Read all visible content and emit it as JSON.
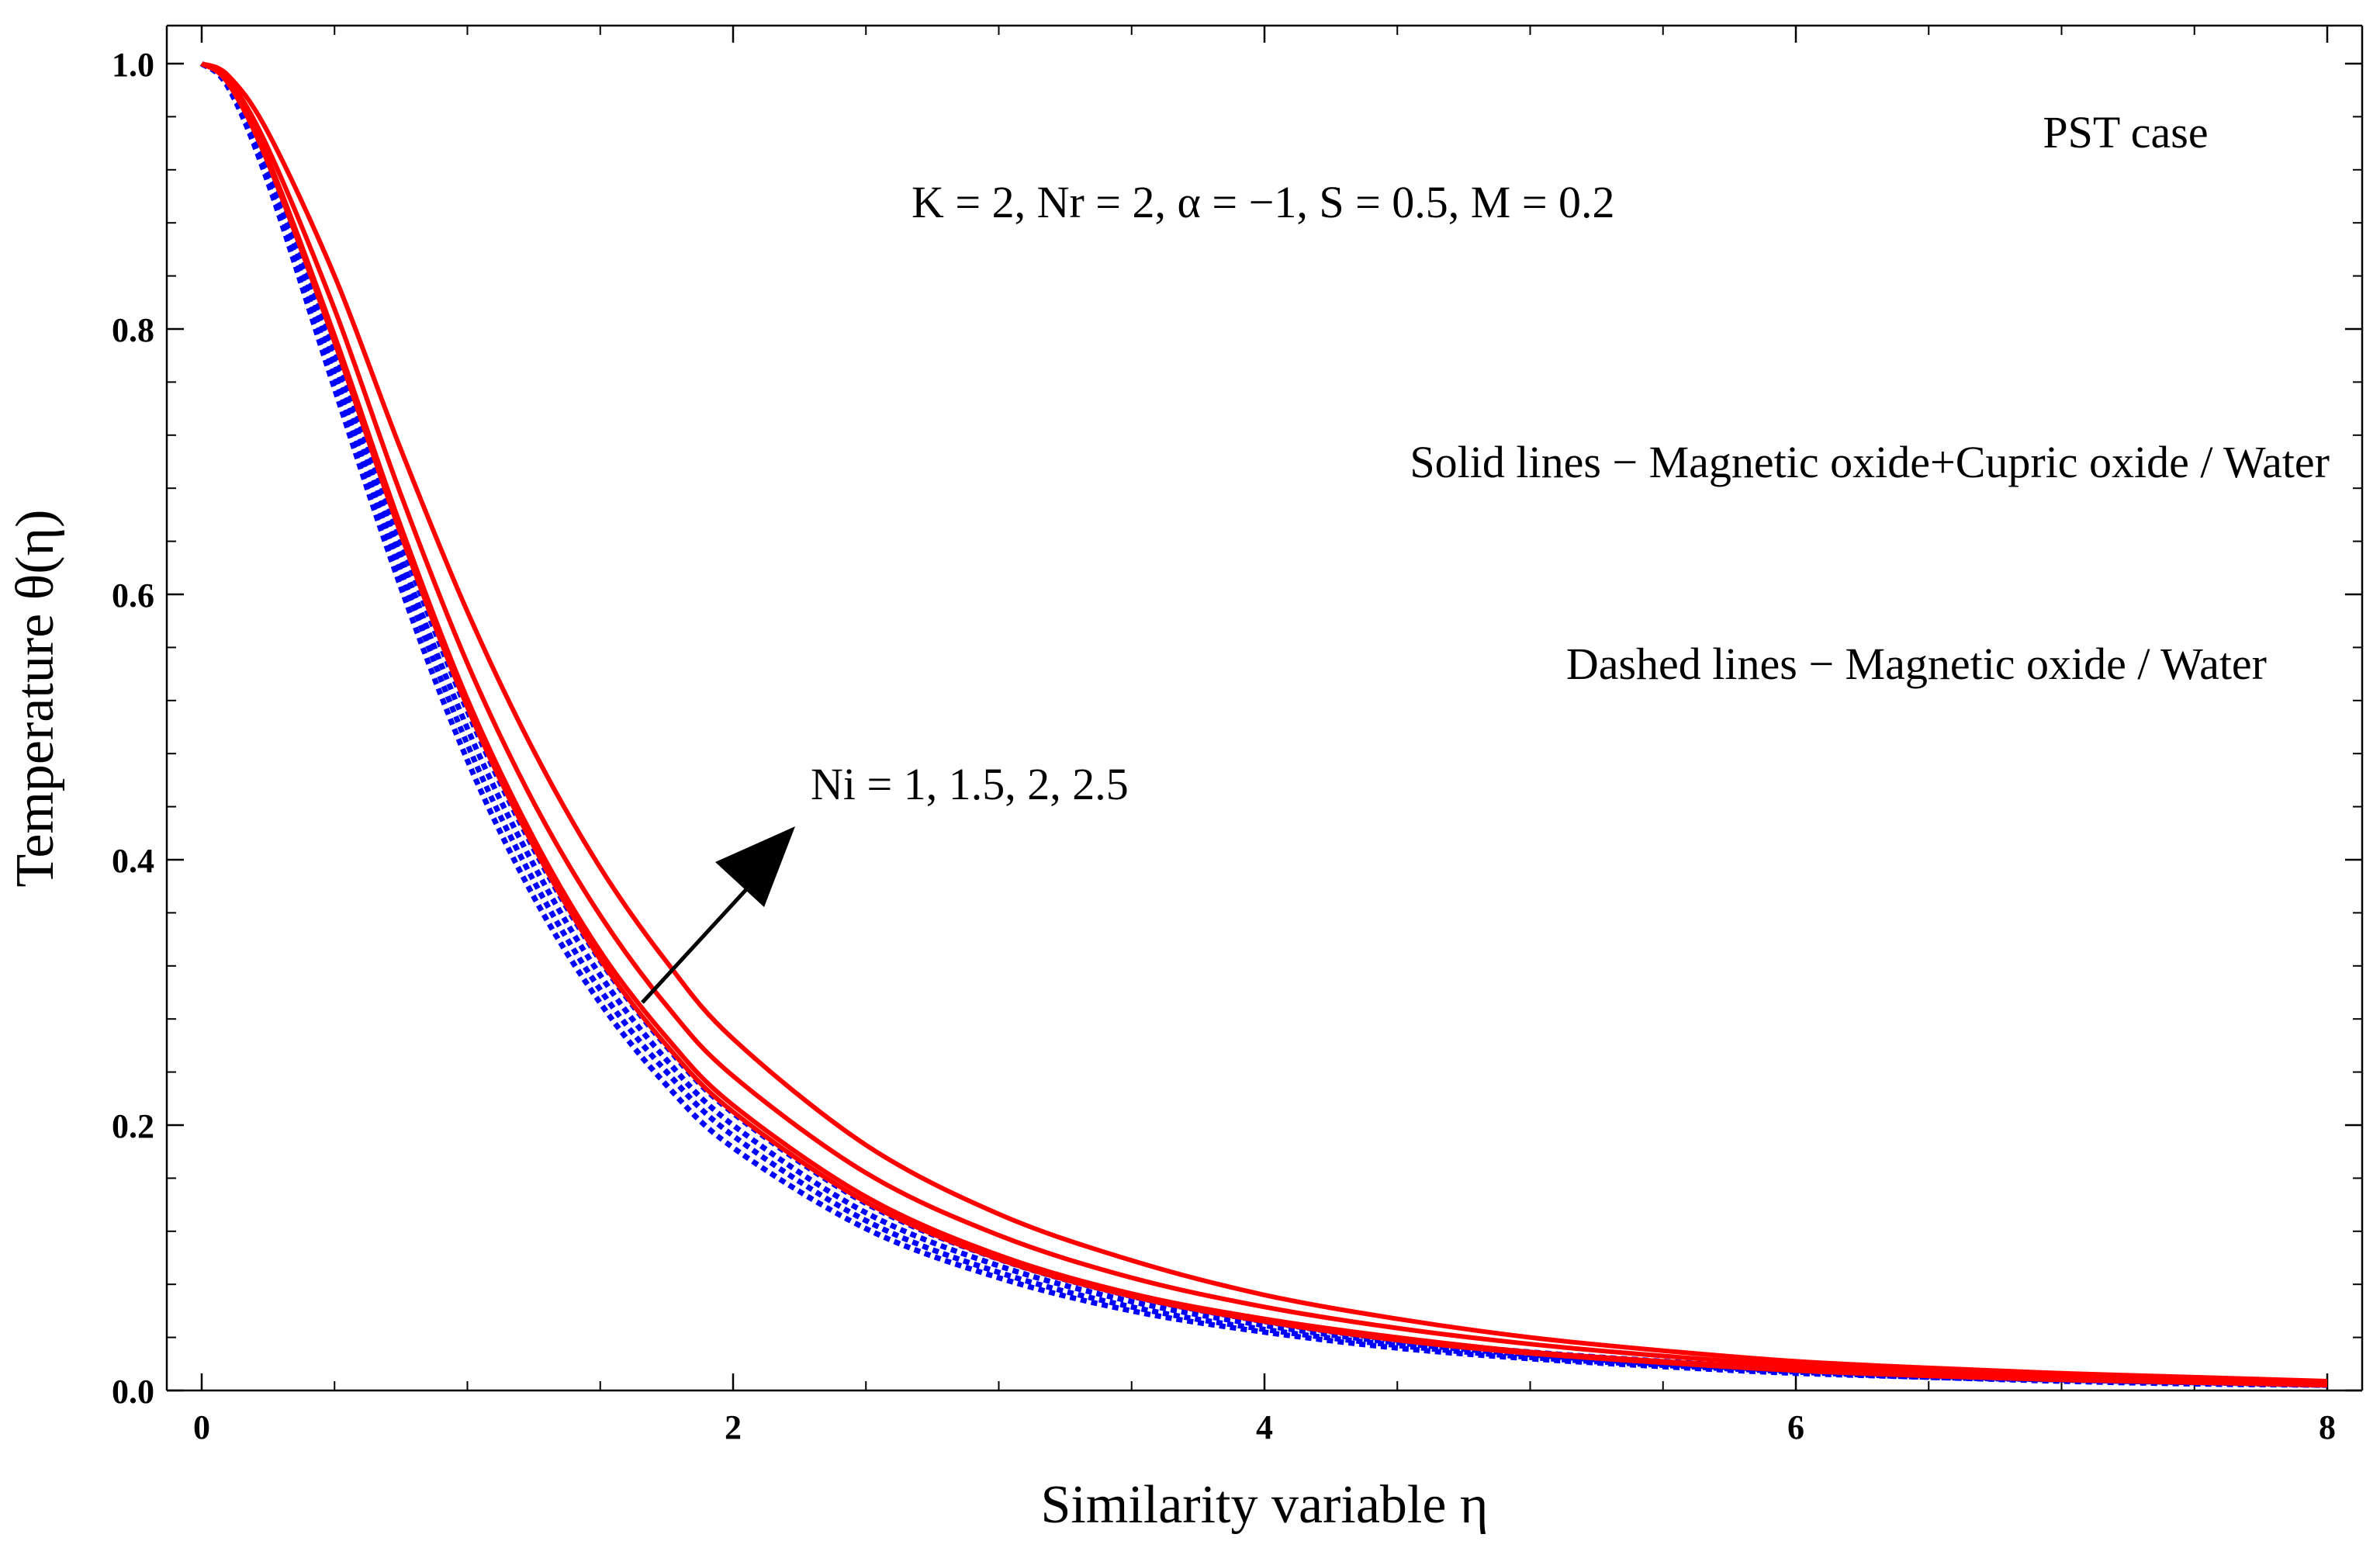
{
  "chart_data": {
    "type": "line",
    "title": "",
    "xlabel": "Similarity variable η",
    "ylabel": "Temperature θ(η)",
    "xlim": [
      0,
      8
    ],
    "ylim": [
      0,
      1
    ],
    "x_ticks": [
      0,
      2,
      4,
      6,
      8
    ],
    "x_tick_labels": [
      "0",
      "2",
      "4",
      "6",
      "8"
    ],
    "y_ticks": [
      0,
      0.2,
      0.4,
      0.6,
      0.8,
      1.0
    ],
    "y_tick_labels": [
      "0.0",
      "0.2",
      "0.4",
      "0.6",
      "0.8",
      "1.0"
    ],
    "grid": false,
    "x": [
      0,
      0.1,
      0.25,
      0.5,
      0.75,
      1,
      1.25,
      1.5,
      1.75,
      2,
      2.5,
      3,
      3.5,
      4,
      4.5,
      5,
      5.5,
      6,
      6.5,
      7,
      7.5,
      8
    ],
    "series": [
      {
        "name": "Hybrid Ni=1",
        "group": "Magnetic oxide+Cupric oxide / Water",
        "style": "solid",
        "color": "#ff0000",
        "values": [
          1.0,
          0.985,
          0.925,
          0.79,
          0.645,
          0.515,
          0.41,
          0.325,
          0.26,
          0.21,
          0.142,
          0.099,
          0.071,
          0.052,
          0.038,
          0.028,
          0.021,
          0.015,
          0.011,
          0.008,
          0.006,
          0.004
        ]
      },
      {
        "name": "Hybrid Ni=1.5",
        "group": "Magnetic oxide+Cupric oxide / Water",
        "style": "solid",
        "color": "#ff0000",
        "values": [
          1.0,
          0.986,
          0.928,
          0.795,
          0.651,
          0.521,
          0.416,
          0.331,
          0.266,
          0.215,
          0.146,
          0.102,
          0.073,
          0.054,
          0.04,
          0.029,
          0.022,
          0.016,
          0.012,
          0.009,
          0.006,
          0.005
        ]
      },
      {
        "name": "Hybrid Ni=2",
        "group": "Magnetic oxide+Cupric oxide / Water",
        "style": "solid",
        "color": "#ff0000",
        "values": [
          1.0,
          0.988,
          0.936,
          0.815,
          0.675,
          0.548,
          0.443,
          0.358,
          0.29,
          0.237,
          0.164,
          0.117,
          0.085,
          0.063,
          0.047,
          0.035,
          0.026,
          0.019,
          0.014,
          0.011,
          0.008,
          0.006
        ]
      },
      {
        "name": "Hybrid Ni=2.5",
        "group": "Magnetic oxide+Cupric oxide / Water",
        "style": "solid",
        "color": "#ff0000",
        "values": [
          1.0,
          0.991,
          0.948,
          0.84,
          0.709,
          0.587,
          0.482,
          0.394,
          0.323,
          0.265,
          0.185,
          0.133,
          0.098,
          0.072,
          0.054,
          0.04,
          0.03,
          0.022,
          0.017,
          0.013,
          0.01,
          0.007
        ]
      },
      {
        "name": "Nano Ni=1",
        "group": "Magnetic oxide / Water",
        "style": "dashed",
        "color": "#0000ff",
        "values": [
          1.0,
          0.982,
          0.91,
          0.755,
          0.605,
          0.475,
          0.372,
          0.292,
          0.23,
          0.183,
          0.122,
          0.085,
          0.06,
          0.044,
          0.032,
          0.024,
          0.018,
          0.013,
          0.01,
          0.007,
          0.005,
          0.004
        ]
      },
      {
        "name": "Nano Ni=1.5",
        "group": "Magnetic oxide / Water",
        "style": "dashed",
        "color": "#0000ff",
        "values": [
          1.0,
          0.983,
          0.915,
          0.765,
          0.617,
          0.487,
          0.384,
          0.302,
          0.24,
          0.192,
          0.128,
          0.089,
          0.063,
          0.046,
          0.034,
          0.025,
          0.019,
          0.014,
          0.01,
          0.008,
          0.006,
          0.004
        ]
      },
      {
        "name": "Nano Ni=2",
        "group": "Magnetic oxide / Water",
        "style": "dashed",
        "color": "#0000ff",
        "values": [
          1.0,
          0.984,
          0.92,
          0.775,
          0.628,
          0.499,
          0.396,
          0.313,
          0.249,
          0.2,
          0.134,
          0.094,
          0.067,
          0.049,
          0.036,
          0.027,
          0.02,
          0.015,
          0.011,
          0.008,
          0.006,
          0.005
        ]
      },
      {
        "name": "Nano Ni=2.5",
        "group": "Magnetic oxide / Water",
        "style": "dashed",
        "color": "#0000ff",
        "values": [
          1.0,
          0.985,
          0.925,
          0.785,
          0.64,
          0.512,
          0.408,
          0.324,
          0.259,
          0.209,
          0.141,
          0.099,
          0.071,
          0.052,
          0.038,
          0.029,
          0.022,
          0.016,
          0.012,
          0.009,
          0.007,
          0.005
        ]
      }
    ],
    "annotations": {
      "case": "PST case",
      "parameters": "K = 2,  Nr = 2,  α = −1, S = 0.5,  M = 0.2",
      "solid_legend": "Solid lines − Magnetic oxide+Cupric oxide / Water",
      "dashed_legend": "Dashed lines − Magnetic oxide / Water",
      "arrow_label": "Ni = 1, 1.5, 2, 2.5"
    }
  }
}
